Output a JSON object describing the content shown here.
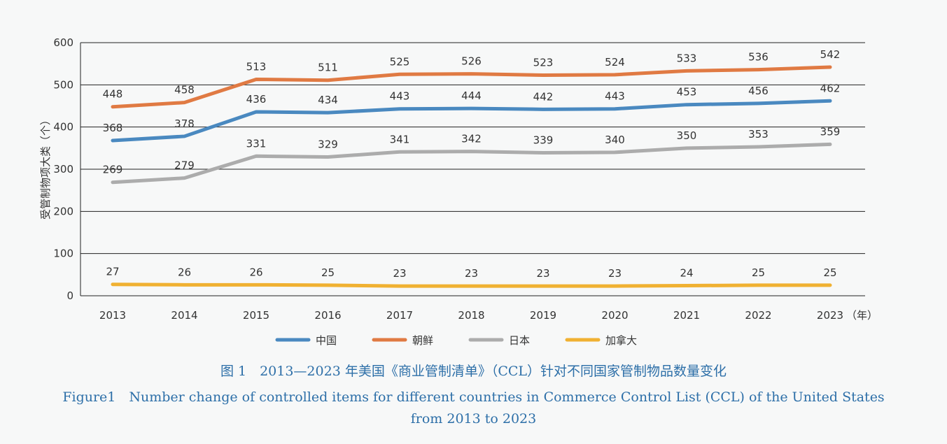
{
  "chart_data": {
    "type": "line",
    "ylabel": "受管制物项大类（个）",
    "xunit": "（年）",
    "ylim": [
      0,
      600
    ],
    "yticks": [
      "0",
      "100",
      "200",
      "300",
      "400",
      "500",
      "600"
    ],
    "categories": [
      "2013",
      "2014",
      "2015",
      "2016",
      "2017",
      "2018",
      "2019",
      "2020",
      "2021",
      "2022",
      "2023"
    ],
    "series": [
      {
        "name": "中国",
        "color": "#4a89c0",
        "values": [
          368,
          378,
          436,
          434,
          443,
          444,
          442,
          443,
          453,
          456,
          462
        ]
      },
      {
        "name": "朝鲜",
        "color": "#e07a43",
        "values": [
          448,
          458,
          513,
          511,
          525,
          526,
          523,
          524,
          533,
          536,
          542
        ]
      },
      {
        "name": "日本",
        "color": "#acacac",
        "values": [
          269,
          279,
          331,
          329,
          341,
          342,
          339,
          340,
          350,
          353,
          359
        ]
      },
      {
        "name": "加拿大",
        "color": "#f0b132",
        "values": [
          27,
          26,
          26,
          25,
          23,
          23,
          23,
          23,
          24,
          25,
          25
        ]
      }
    ],
    "legend_position": "bottom",
    "grid": "horizontal"
  },
  "caption": {
    "cn": "图 1　2013—2023 年美国《商业管制清单》（CCL）针对不同国家管制物品数量变化",
    "en_line1": "Figure1　Number change of controlled items for different countries in Commerce Control List (CCL) of the United States",
    "en_line2": "from 2013 to 2023"
  }
}
